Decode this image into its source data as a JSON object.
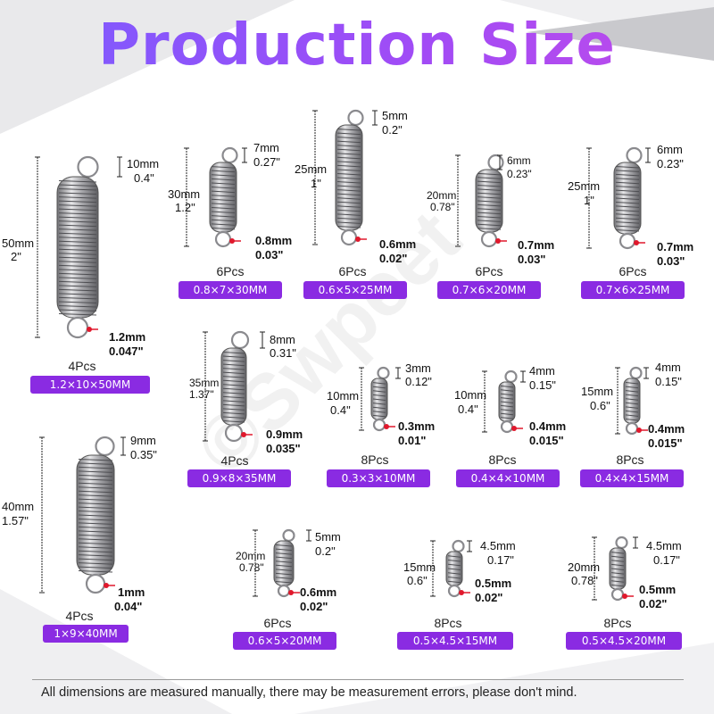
{
  "title": "Production Size",
  "watermark": "©Swpeet",
  "footer": "All dimensions are measured manually, there may be measurement errors, please don't mind.",
  "colors": {
    "badge": "#8a2be2",
    "title_start": "#7b5cff",
    "title_end": "#c04bea",
    "wire_mark": "#e0182c"
  },
  "items": [
    {
      "len_mm": "50mm",
      "len_in": "2\"",
      "hook_mm": "10mm",
      "hook_in": "0.4\"",
      "wire_mm": "1.2mm",
      "wire_in": "0.047\"",
      "pcs": "4Pcs",
      "spec": "1.2×10×50MM"
    },
    {
      "len_mm": "30mm",
      "len_in": "1.2\"",
      "hook_mm": "7mm",
      "hook_in": "0.27\"",
      "wire_mm": "0.8mm",
      "wire_in": "0.03\"",
      "pcs": "6Pcs",
      "spec": "0.8×7×30MM"
    },
    {
      "len_mm": "25mm",
      "len_in": "1\"",
      "hook_mm": "5mm",
      "hook_in": "0.2\"",
      "wire_mm": "0.6mm",
      "wire_in": "0.02\"",
      "pcs": "6Pcs",
      "spec": "0.6×5×25MM"
    },
    {
      "len_mm": "20mm",
      "len_in": "0.78\"",
      "hook_mm": "6mm",
      "hook_in": "0.23\"",
      "wire_mm": "0.7mm",
      "wire_in": "0.03\"",
      "pcs": "6Pcs",
      "spec": "0.7×6×20MM"
    },
    {
      "len_mm": "25mm",
      "len_in": "1\"",
      "hook_mm": "6mm",
      "hook_in": "0.23\"",
      "wire_mm": "0.7mm",
      "wire_in": "0.03\"",
      "pcs": "6Pcs",
      "spec": "0.7×6×25MM"
    },
    {
      "len_mm": "35mm",
      "len_in": "1.37\"",
      "hook_mm": "8mm",
      "hook_in": "0.31\"",
      "wire_mm": "0.9mm",
      "wire_in": "0.035\"",
      "pcs": "4Pcs",
      "spec": "0.9×8×35MM"
    },
    {
      "len_mm": "10mm",
      "len_in": "0.4\"",
      "hook_mm": "3mm",
      "hook_in": "0.12\"",
      "wire_mm": "0.3mm",
      "wire_in": "0.01\"",
      "pcs": "8Pcs",
      "spec": "0.3×3×10MM"
    },
    {
      "len_mm": "10mm",
      "len_in": "0.4\"",
      "hook_mm": "4mm",
      "hook_in": "0.15\"",
      "wire_mm": "0.4mm",
      "wire_in": "0.015\"",
      "pcs": "8Pcs",
      "spec": "0.4×4×10MM"
    },
    {
      "len_mm": "15mm",
      "len_in": "0.6\"",
      "hook_mm": "4mm",
      "hook_in": "0.15\"",
      "wire_mm": "0.4mm",
      "wire_in": "0.015\"",
      "pcs": "8Pcs",
      "spec": "0.4×4×15MM"
    },
    {
      "len_mm": "40mm",
      "len_in": "1.57\"",
      "hook_mm": "9mm",
      "hook_in": "0.35\"",
      "wire_mm": "1mm",
      "wire_in": "0.04\"",
      "pcs": "4Pcs",
      "spec": "1×9×40MM"
    },
    {
      "len_mm": "20mm",
      "len_in": "0.78\"",
      "hook_mm": "5mm",
      "hook_in": "0.2\"",
      "wire_mm": "0.6mm",
      "wire_in": "0.02\"",
      "pcs": "6Pcs",
      "spec": "0.6×5×20MM"
    },
    {
      "len_mm": "15mm",
      "len_in": "0.6\"",
      "hook_mm": "4.5mm",
      "hook_in": "0.17\"",
      "wire_mm": "0.5mm",
      "wire_in": "0.02\"",
      "pcs": "8Pcs",
      "spec": "0.5×4.5×15MM"
    },
    {
      "len_mm": "20mm",
      "len_in": "0.78\"",
      "hook_mm": "4.5mm",
      "hook_in": "0.17\"",
      "wire_mm": "0.5mm",
      "wire_in": "0.02\"",
      "pcs": "8Pcs",
      "spec": "0.5×4.5×20MM"
    }
  ]
}
